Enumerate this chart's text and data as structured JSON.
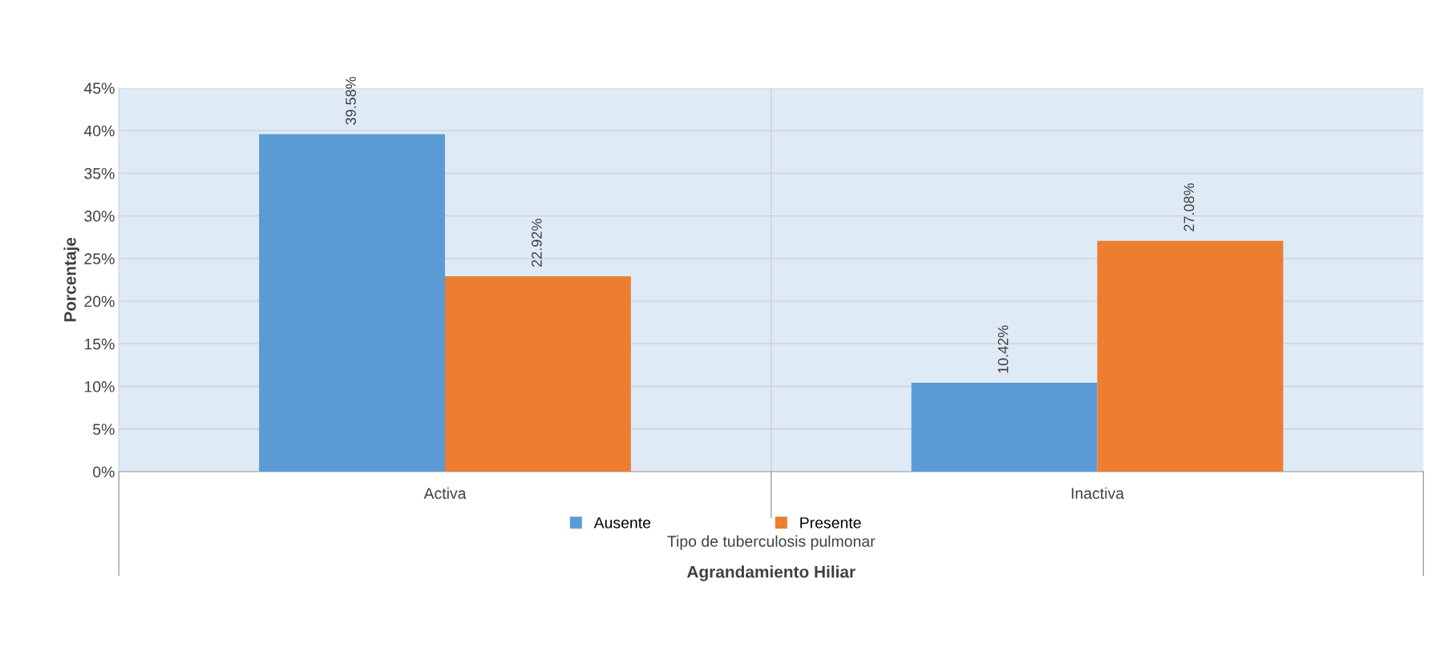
{
  "chart_data": {
    "type": "bar",
    "categories": [
      "Activa",
      "Inactiva"
    ],
    "series": [
      {
        "name": "Ausente",
        "color": "#5b9bd5",
        "values": [
          39.58,
          10.42
        ],
        "value_labels": [
          "39.58%",
          "10.42%"
        ]
      },
      {
        "name": "Presente",
        "color": "#ed7d31",
        "values": [
          22.92,
          27.08
        ],
        "value_labels": [
          "22.92%",
          "27.08%"
        ]
      }
    ],
    "ylabel": "Porcentaje",
    "annotations": [
      "Tipo de tuberculosis pulmonar",
      "Agrandamiento Hiliar"
    ],
    "ylim": [
      0,
      45
    ],
    "yticks": [
      {
        "value": 0,
        "label": "0%"
      },
      {
        "value": 5,
        "label": "5%"
      },
      {
        "value": 10,
        "label": "10%"
      },
      {
        "value": 15,
        "label": "15%"
      },
      {
        "value": 20,
        "label": "20%"
      },
      {
        "value": 25,
        "label": "25%"
      },
      {
        "value": 30,
        "label": "30%"
      },
      {
        "value": 35,
        "label": "35%"
      },
      {
        "value": 40,
        "label": "40%"
      },
      {
        "value": 45,
        "label": "45%"
      }
    ],
    "grid": true,
    "legend": "bottom"
  }
}
